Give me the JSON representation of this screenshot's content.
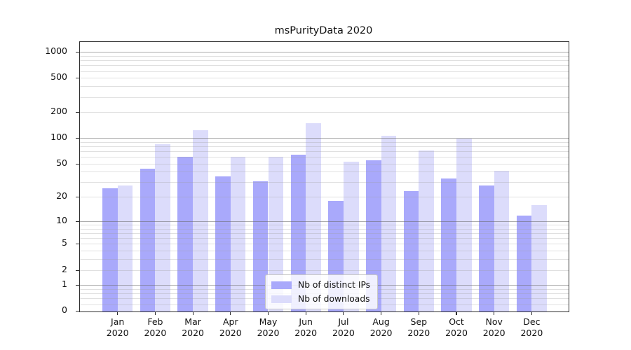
{
  "title": "msPurityData 2020",
  "background_color": "#ffffff",
  "axis_color": "#2e2e2e",
  "chart_data": {
    "type": "bar",
    "title": "msPurityData 2020",
    "xlabel": "",
    "ylabel": "",
    "y_scale": "symlog (log1p)",
    "ylim": [
      0,
      1300
    ],
    "grid": "on",
    "legend_position": "bottom-center",
    "categories": [
      "Jan",
      "Feb",
      "Mar",
      "Apr",
      "May",
      "Jun",
      "Jul",
      "Aug",
      "Sep",
      "Oct",
      "Nov",
      "Dec"
    ],
    "x_year_label": "2020",
    "series": [
      {
        "name": "Nb of distinct IPs",
        "color": "#a9a9fb",
        "values": [
          26,
          44,
          61,
          36,
          31,
          65,
          18,
          56,
          24,
          34,
          28,
          12
        ]
      },
      {
        "name": "Nb of downloads",
        "color": "#dcdcfb",
        "values": [
          28,
          86,
          126,
          61,
          61,
          150,
          53,
          107,
          73,
          100,
          42,
          16
        ]
      }
    ],
    "y_ticks": [
      0,
      1,
      2,
      5,
      10,
      20,
      50,
      100,
      200,
      500,
      1000
    ],
    "y_major_gridlines": [
      1,
      10,
      100,
      1000
    ],
    "y_minor_gridlines": [
      0.2,
      0.4,
      0.6,
      0.8,
      2,
      3,
      4,
      5,
      6,
      7,
      8,
      9,
      20,
      30,
      40,
      50,
      60,
      70,
      80,
      90,
      200,
      300,
      400,
      500,
      600,
      700,
      800,
      900
    ]
  }
}
